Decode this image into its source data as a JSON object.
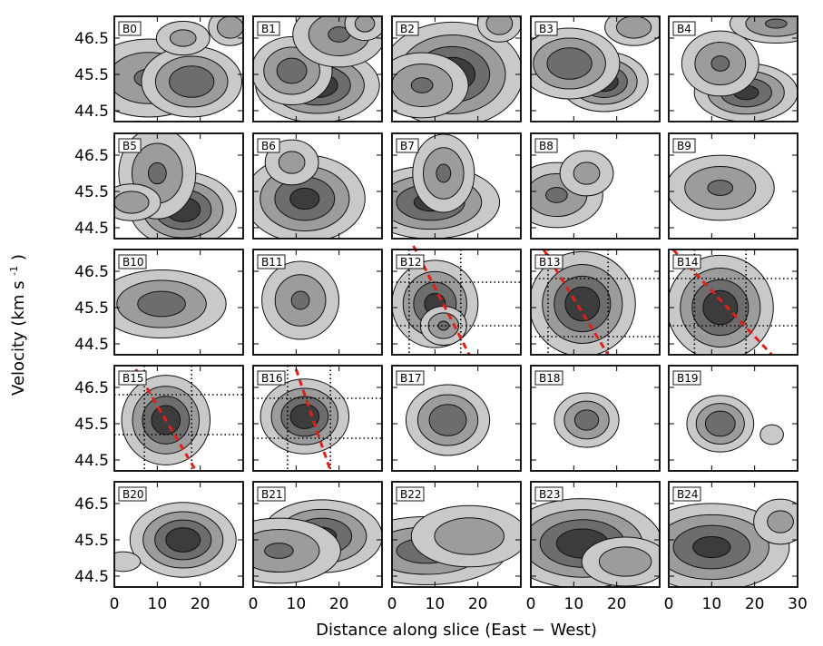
{
  "chart_data": {
    "type": "contour",
    "xlabel": "Distance along slice (East − West)",
    "ylabel_main": "Velocity (km s",
    "ylabel_sup": "-1",
    "ylabel_close": ")",
    "xlim": [
      0,
      30
    ],
    "ylim": [
      44.2,
      47.1
    ],
    "x_ticks": [
      "0",
      "10",
      "20",
      "30"
    ],
    "y_ticks": [
      "44.5",
      "45.5",
      "46.5"
    ],
    "y_tick_values": [
      44.5,
      45.5,
      46.5
    ],
    "contour_levels": 4,
    "contour_fill_colors": [
      "#c9c9c9",
      "#9c9c9c",
      "#6d6d6d",
      "#3c3c3c"
    ],
    "trace_color": "#e0201a",
    "panels": [
      {
        "label": "B0",
        "blobs": [
          [
            8,
            45.4,
            8,
            0.6,
            0.6
          ],
          [
            18,
            45.3,
            6,
            0.5,
            0.8
          ],
          [
            16,
            46.5,
            4,
            0.3,
            0.4
          ],
          [
            27,
            46.8,
            3,
            0.3,
            0.5
          ]
        ]
      },
      {
        "label": "B1",
        "blobs": [
          [
            15,
            45.2,
            7,
            0.5,
            1.0
          ],
          [
            9,
            45.6,
            5,
            0.5,
            0.7
          ],
          [
            20,
            46.6,
            6,
            0.5,
            0.6
          ],
          [
            26,
            46.9,
            3,
            0.3,
            0.4
          ]
        ]
      },
      {
        "label": "B2",
        "blobs": [
          [
            14,
            45.5,
            8,
            0.7,
            1.0
          ],
          [
            7,
            45.2,
            6,
            0.5,
            0.6
          ],
          [
            25,
            46.9,
            3,
            0.3,
            0.5
          ]
        ]
      },
      {
        "label": "B3",
        "blobs": [
          [
            17,
            45.3,
            5,
            0.4,
            1.0
          ],
          [
            9,
            45.8,
            6,
            0.5,
            0.8
          ],
          [
            24,
            46.8,
            4,
            0.3,
            0.5
          ]
        ]
      },
      {
        "label": "B4",
        "blobs": [
          [
            18,
            45.0,
            6,
            0.4,
            0.9
          ],
          [
            12,
            45.8,
            5,
            0.5,
            0.6
          ],
          [
            25,
            46.9,
            6,
            0.3,
            0.6
          ]
        ]
      },
      {
        "label": "B5",
        "blobs": [
          [
            16,
            45.0,
            6,
            0.5,
            1.0
          ],
          [
            10,
            46.0,
            5,
            0.7,
            0.6
          ],
          [
            4,
            45.2,
            4,
            0.3,
            0.5
          ]
        ]
      },
      {
        "label": "B6",
        "blobs": [
          [
            12,
            45.3,
            7,
            0.6,
            0.9
          ],
          [
            9,
            46.3,
            4,
            0.4,
            0.4
          ]
        ]
      },
      {
        "label": "B7",
        "blobs": [
          [
            9,
            45.2,
            8,
            0.5,
            0.9
          ],
          [
            12,
            46.0,
            4,
            0.6,
            0.6
          ]
        ]
      },
      {
        "label": "B8",
        "blobs": [
          [
            6,
            45.4,
            6,
            0.5,
            0.6
          ],
          [
            13,
            46.0,
            4,
            0.4,
            0.4
          ]
        ]
      },
      {
        "label": "B9",
        "blobs": [
          [
            12,
            45.6,
            7,
            0.5,
            0.6
          ]
        ]
      },
      {
        "label": "B10",
        "blobs": [
          [
            11,
            45.6,
            8,
            0.5,
            0.7
          ]
        ]
      },
      {
        "label": "B11",
        "blobs": [
          [
            11,
            45.7,
            5,
            0.6,
            0.6
          ]
        ]
      },
      {
        "label": "B12",
        "blobs": [
          [
            10,
            45.6,
            5,
            0.6,
            0.9
          ],
          [
            12,
            45.0,
            3,
            0.3,
            0.6
          ]
        ]
      },
      {
        "label": "B13",
        "blobs": [
          [
            12,
            45.6,
            6,
            0.7,
            1.0
          ]
        ]
      },
      {
        "label": "B14",
        "blobs": [
          [
            12,
            45.5,
            6,
            0.7,
            1.0
          ]
        ]
      },
      {
        "label": "B15",
        "blobs": [
          [
            12,
            45.6,
            5,
            0.6,
            1.0
          ]
        ]
      },
      {
        "label": "B16",
        "blobs": [
          [
            12,
            45.7,
            5,
            0.5,
            1.0
          ]
        ]
      },
      {
        "label": "B17",
        "blobs": [
          [
            13,
            45.6,
            5,
            0.5,
            0.8
          ]
        ]
      },
      {
        "label": "B18",
        "blobs": [
          [
            13,
            45.6,
            4,
            0.4,
            0.7
          ]
        ]
      },
      {
        "label": "B19",
        "blobs": [
          [
            12,
            45.5,
            4,
            0.4,
            0.8
          ],
          [
            24,
            45.2,
            2,
            0.2,
            0.3
          ]
        ]
      },
      {
        "label": "B20",
        "blobs": [
          [
            16,
            45.5,
            6,
            0.5,
            1.0
          ],
          [
            2,
            44.9,
            3,
            0.2,
            0.3
          ]
        ]
      },
      {
        "label": "B21",
        "blobs": [
          [
            16,
            45.6,
            7,
            0.5,
            0.9
          ],
          [
            6,
            45.2,
            8,
            0.5,
            0.6
          ]
        ]
      },
      {
        "label": "B22",
        "blobs": [
          [
            8,
            45.2,
            10,
            0.5,
            0.7
          ],
          [
            18,
            45.6,
            8,
            0.5,
            0.5
          ]
        ]
      },
      {
        "label": "B23",
        "blobs": [
          [
            12,
            45.4,
            9,
            0.6,
            1.0
          ],
          [
            22,
            44.9,
            6,
            0.4,
            0.5
          ]
        ]
      },
      {
        "label": "B24",
        "blobs": [
          [
            10,
            45.3,
            9,
            0.6,
            0.9
          ],
          [
            26,
            46.0,
            4,
            0.4,
            0.4
          ]
        ]
      }
    ],
    "trace_panels": [
      {
        "label": "B12",
        "guides_x": [
          4,
          16
        ],
        "guides_y": [
          46.2,
          45.0
        ],
        "trace": [
          [
            5,
            47.2
          ],
          [
            18,
            44.2
          ]
        ]
      },
      {
        "label": "B13",
        "guides_x": [
          4,
          18
        ],
        "guides_y": [
          46.3,
          44.7
        ],
        "trace": [
          [
            3,
            47.1
          ],
          [
            18,
            44.2
          ]
        ]
      },
      {
        "label": "B14",
        "guides_x": [
          6,
          18
        ],
        "guides_y": [
          46.3,
          45.0
        ],
        "trace": [
          [
            1,
            47.1
          ],
          [
            24,
            44.2
          ]
        ]
      },
      {
        "label": "B15",
        "guides_x": [
          7,
          18
        ],
        "guides_y": [
          46.3,
          45.2
        ],
        "trace": [
          [
            5,
            47.0
          ],
          [
            19,
            44.2
          ]
        ]
      },
      {
        "label": "B16",
        "guides_x": [
          8,
          18
        ],
        "guides_y": [
          46.2,
          45.1
        ],
        "trace": [
          [
            10,
            47.0
          ],
          [
            18,
            44.2
          ]
        ]
      }
    ]
  }
}
